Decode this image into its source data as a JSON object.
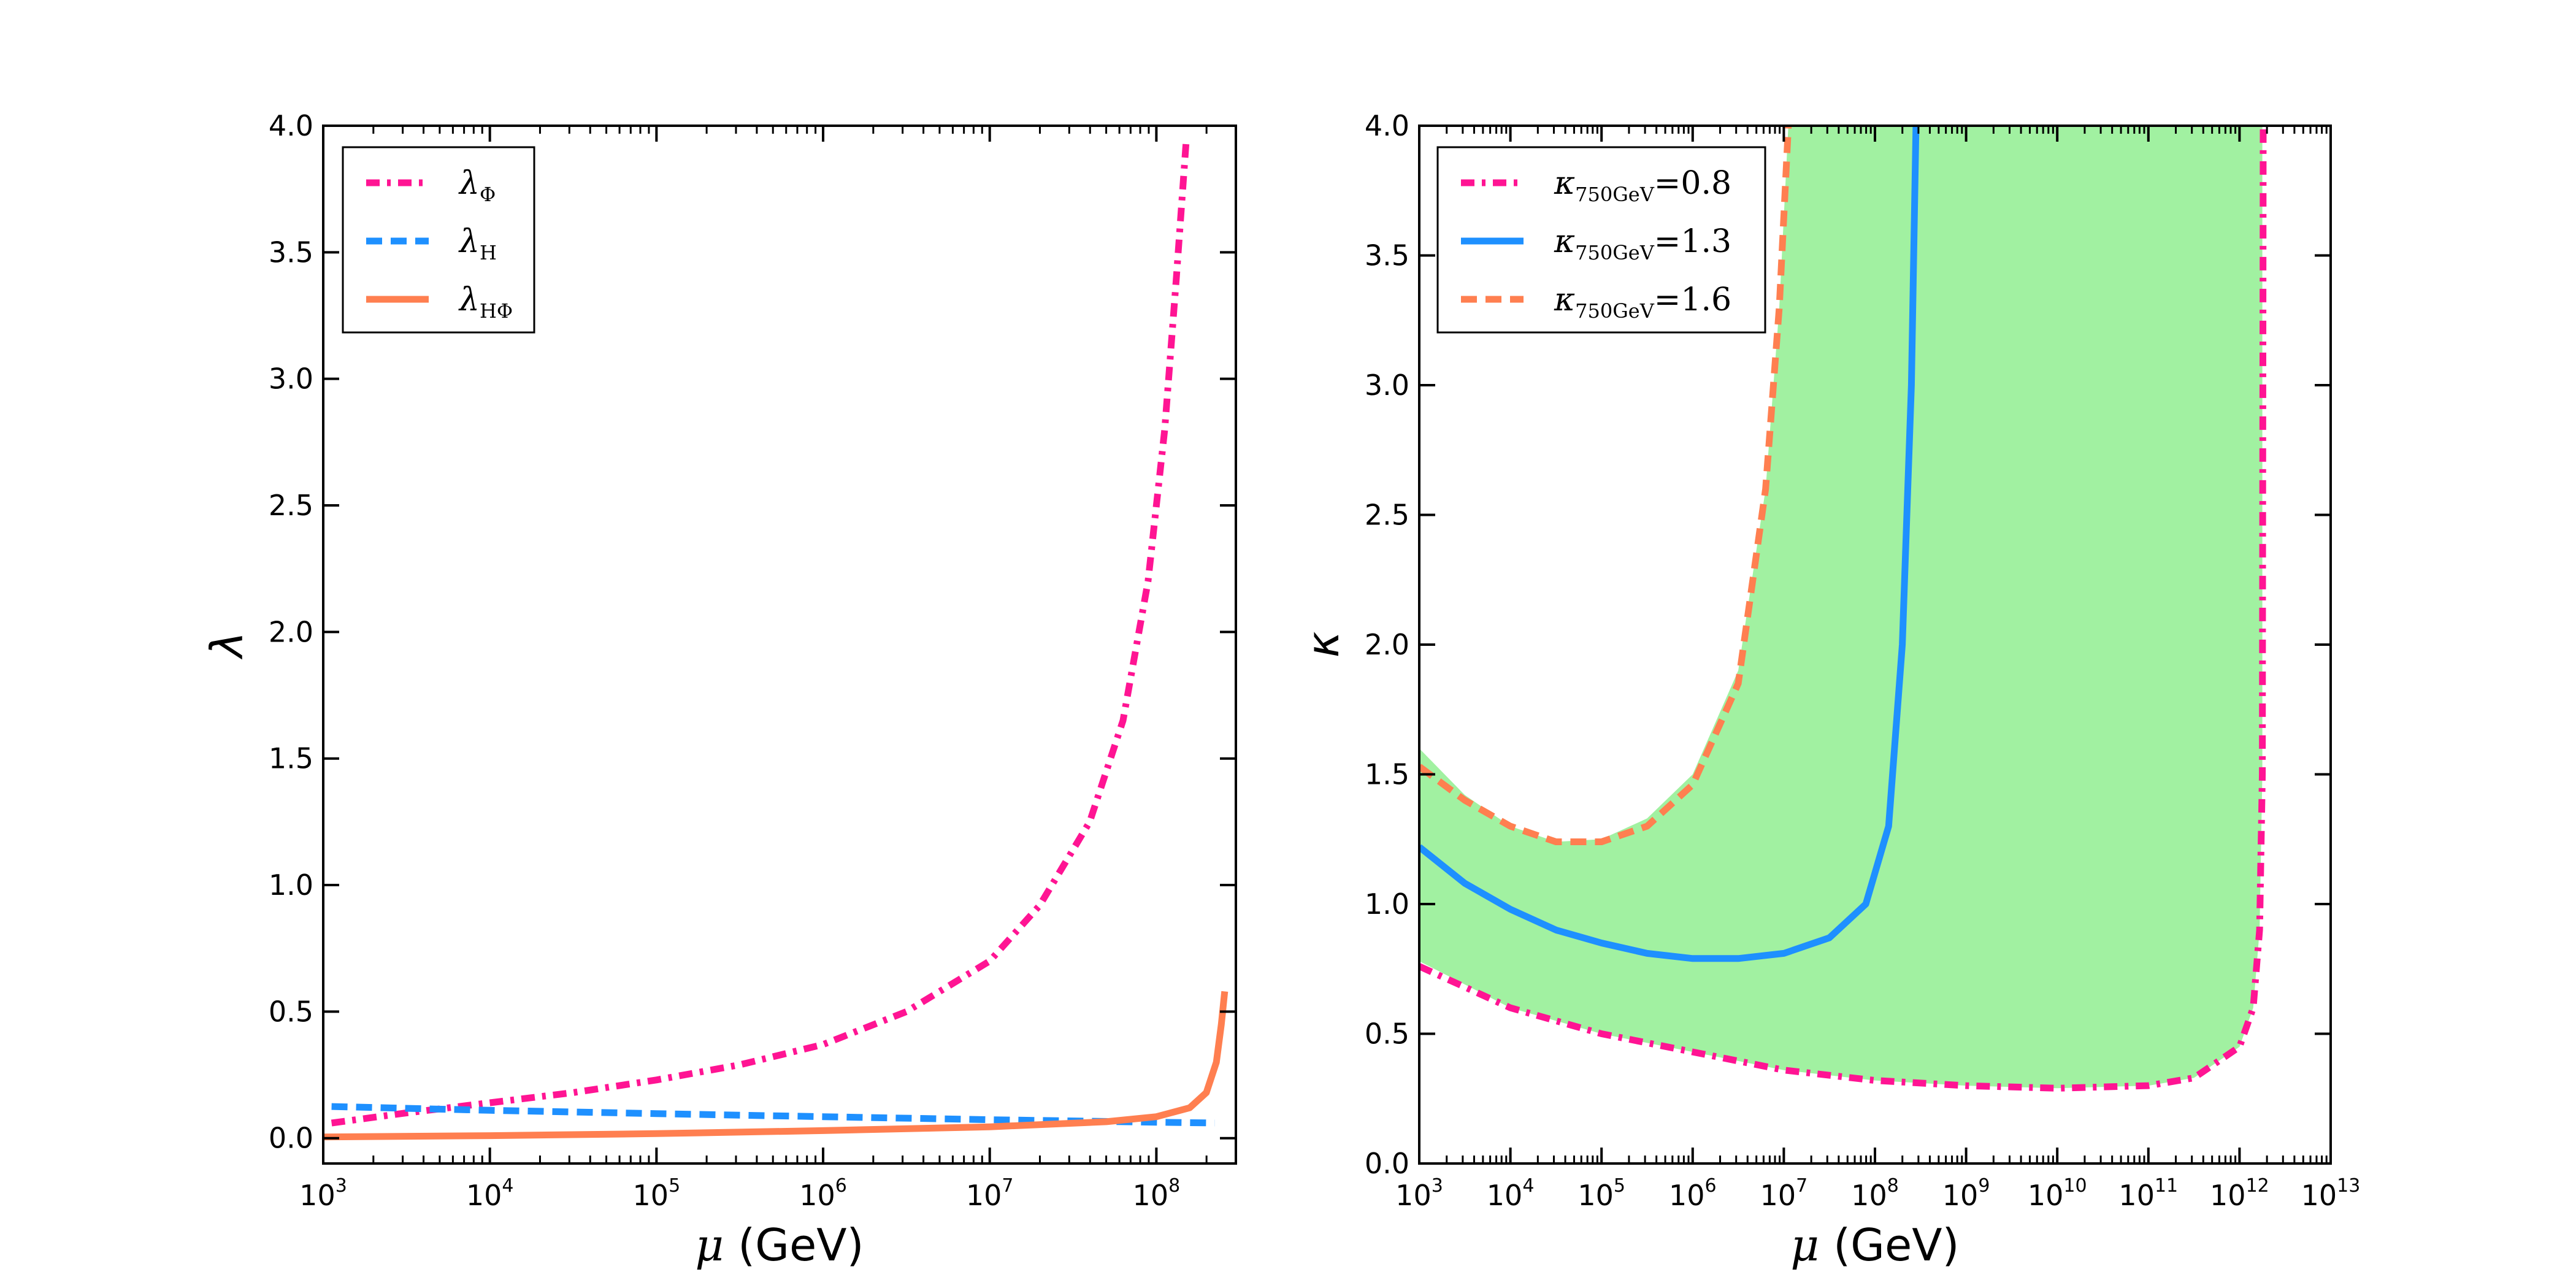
{
  "colors": {
    "phi": "#ff1493",
    "h": "#1e90ff",
    "hphi": "#ff7f50",
    "region": "#90ee90",
    "axes": "#000000"
  },
  "chart_data": [
    {
      "type": "line",
      "xscale": "log",
      "xlim": [
        1000,
        300000000
      ],
      "ylim": [
        -0.1,
        4.0
      ],
      "xlabel": {
        "sym": "μ",
        "text": " (GeV)"
      },
      "ylabel": "λ",
      "xticks": [
        {
          "base": "10",
          "exp": "3",
          "v": 3
        },
        {
          "base": "10",
          "exp": "4",
          "v": 4
        },
        {
          "base": "10",
          "exp": "5",
          "v": 5
        },
        {
          "base": "10",
          "exp": "6",
          "v": 6
        },
        {
          "base": "10",
          "exp": "7",
          "v": 7
        },
        {
          "base": "10",
          "exp": "8",
          "v": 8
        }
      ],
      "yticks": [
        "0.0",
        "0.5",
        "1.0",
        "1.5",
        "2.0",
        "2.5",
        "3.0",
        "3.5",
        "4.0"
      ],
      "legend_position": "upper-left",
      "series": [
        {
          "name": "lambda_Phi",
          "label_main": "λ",
          "label_sub": "Φ",
          "color": "phi",
          "style": "dashdot",
          "points": [
            [
              3.05,
              0.06
            ],
            [
              3.5,
              0.1
            ],
            [
              4,
              0.14
            ],
            [
              4.5,
              0.18
            ],
            [
              5,
              0.23
            ],
            [
              5.5,
              0.29
            ],
            [
              6,
              0.37
            ],
            [
              6.5,
              0.5
            ],
            [
              7,
              0.7
            ],
            [
              7.3,
              0.92
            ],
            [
              7.6,
              1.25
            ],
            [
              7.8,
              1.65
            ],
            [
              7.95,
              2.2
            ],
            [
              8.05,
              2.8
            ],
            [
              8.12,
              3.4
            ],
            [
              8.18,
              3.95
            ]
          ]
        },
        {
          "name": "lambda_H",
          "label_main": "λ",
          "label_sub": "H",
          "color": "h",
          "style": "dashed",
          "points": [
            [
              3.05,
              0.125
            ],
            [
              4,
              0.11
            ],
            [
              5,
              0.097
            ],
            [
              6,
              0.085
            ],
            [
              7,
              0.073
            ],
            [
              8,
              0.063
            ],
            [
              8.35,
              0.06
            ]
          ]
        },
        {
          "name": "lambda_HPhi",
          "label_main": "λ",
          "label_sub": "HΦ",
          "color": "hphi",
          "style": "solid",
          "points": [
            [
              3,
              0.005
            ],
            [
              4,
              0.01
            ],
            [
              5,
              0.018
            ],
            [
              6,
              0.03
            ],
            [
              7,
              0.045
            ],
            [
              7.7,
              0.065
            ],
            [
              8,
              0.085
            ],
            [
              8.2,
              0.12
            ],
            [
              8.3,
              0.18
            ],
            [
              8.36,
              0.3
            ],
            [
              8.39,
              0.45
            ],
            [
              8.41,
              0.58
            ]
          ]
        }
      ]
    },
    {
      "type": "line",
      "xscale": "log",
      "xlim": [
        1000,
        10000000000000
      ],
      "ylim": [
        0.0,
        4.0
      ],
      "xlabel": {
        "sym": "μ",
        "text": " (GeV)"
      },
      "ylabel": "κ",
      "xticks": [
        {
          "base": "10",
          "exp": "3",
          "v": 3
        },
        {
          "base": "10",
          "exp": "4",
          "v": 4
        },
        {
          "base": "10",
          "exp": "5",
          "v": 5
        },
        {
          "base": "10",
          "exp": "6",
          "v": 6
        },
        {
          "base": "10",
          "exp": "7",
          "v": 7
        },
        {
          "base": "10",
          "exp": "8",
          "v": 8
        },
        {
          "base": "10",
          "exp": "9",
          "v": 9
        },
        {
          "base": "10",
          "exp": "10",
          "v": 10
        },
        {
          "base": "10",
          "exp": "11",
          "v": 11
        },
        {
          "base": "10",
          "exp": "12",
          "v": 12
        },
        {
          "base": "10",
          "exp": "13",
          "v": 13
        }
      ],
      "yticks": [
        "0.0",
        "0.5",
        "1.0",
        "1.5",
        "2.0",
        "2.5",
        "3.0",
        "3.5",
        "4.0"
      ],
      "legend_position": "upper-left",
      "shaded_region": {
        "color": "region",
        "upper_boundary": [
          [
            3,
            1.6
          ],
          [
            3.5,
            1.42
          ],
          [
            4,
            1.3
          ],
          [
            4.5,
            1.24
          ],
          [
            5,
            1.25
          ],
          [
            5.5,
            1.33
          ],
          [
            6,
            1.5
          ],
          [
            6.5,
            1.9
          ],
          [
            6.8,
            2.6
          ],
          [
            6.95,
            3.3
          ],
          [
            7.05,
            4.0
          ],
          [
            12.25,
            4.0
          ]
        ],
        "lower_boundary": [
          [
            12.25,
            4.0
          ],
          [
            12.25,
            1.5
          ],
          [
            12.22,
            0.9
          ],
          [
            12.15,
            0.6
          ],
          [
            12,
            0.45
          ],
          [
            11.5,
            0.33
          ],
          [
            11,
            0.3
          ],
          [
            10,
            0.29
          ],
          [
            9,
            0.3
          ],
          [
            8,
            0.32
          ],
          [
            7,
            0.36
          ],
          [
            6,
            0.43
          ],
          [
            5,
            0.5
          ],
          [
            4,
            0.6
          ],
          [
            3,
            0.78
          ]
        ]
      },
      "series": [
        {
          "name": "kappa_0.8",
          "label_main": "κ",
          "label_sub": "750GeV",
          "label_val": "=0.8",
          "color": "phi",
          "style": "dashdot",
          "points": [
            [
              3,
              0.76
            ],
            [
              4,
              0.6
            ],
            [
              5,
              0.5
            ],
            [
              6,
              0.43
            ],
            [
              7,
              0.36
            ],
            [
              8,
              0.32
            ],
            [
              9,
              0.3
            ],
            [
              10,
              0.29
            ],
            [
              11,
              0.3
            ],
            [
              11.5,
              0.33
            ],
            [
              12,
              0.45
            ],
            [
              12.15,
              0.6
            ],
            [
              12.22,
              0.9
            ],
            [
              12.25,
              1.5
            ],
            [
              12.26,
              4.0
            ]
          ]
        },
        {
          "name": "kappa_1.3",
          "label_main": "κ",
          "label_sub": "750GeV",
          "label_val": "=1.3",
          "color": "h",
          "style": "solid",
          "points": [
            [
              3,
              1.22
            ],
            [
              3.5,
              1.08
            ],
            [
              4,
              0.98
            ],
            [
              4.5,
              0.9
            ],
            [
              5,
              0.85
            ],
            [
              5.5,
              0.81
            ],
            [
              6,
              0.79
            ],
            [
              6.5,
              0.79
            ],
            [
              7,
              0.81
            ],
            [
              7.5,
              0.87
            ],
            [
              7.9,
              1.0
            ],
            [
              8.15,
              1.3
            ],
            [
              8.3,
              2.0
            ],
            [
              8.4,
              3.0
            ],
            [
              8.45,
              4.0
            ]
          ]
        },
        {
          "name": "kappa_1.6",
          "label_main": "κ",
          "label_sub": "750GeV",
          "label_val": "=1.6",
          "color": "hphi",
          "style": "dashed",
          "points": [
            [
              3,
              1.53
            ],
            [
              3.5,
              1.4
            ],
            [
              4,
              1.3
            ],
            [
              4.5,
              1.24
            ],
            [
              5,
              1.24
            ],
            [
              5.5,
              1.3
            ],
            [
              6,
              1.46
            ],
            [
              6.5,
              1.85
            ],
            [
              6.8,
              2.6
            ],
            [
              6.95,
              3.3
            ],
            [
              7.05,
              4.0
            ]
          ]
        }
      ]
    }
  ]
}
